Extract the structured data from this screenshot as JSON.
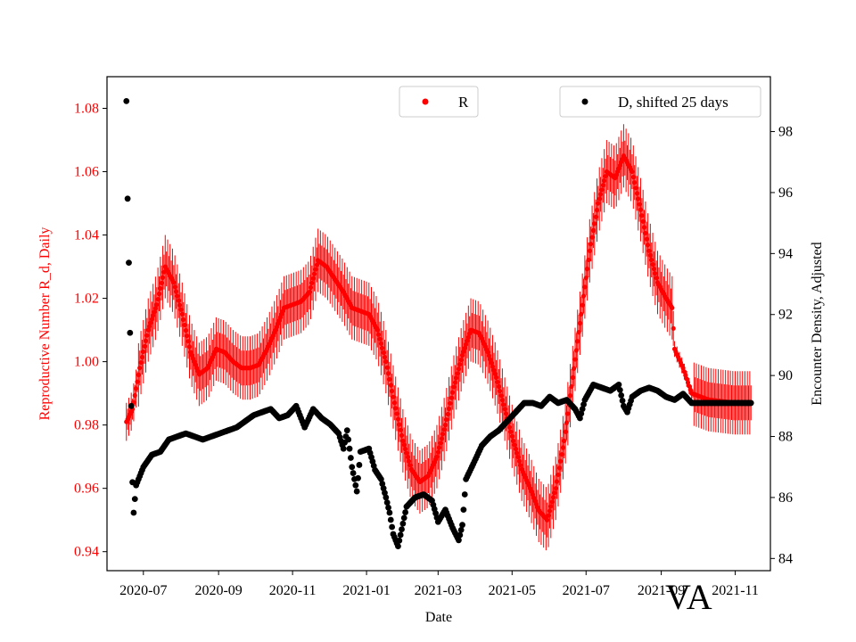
{
  "chart_data": {
    "type": "scatter",
    "title": "",
    "corner_label": "VA",
    "xlabel": "Date",
    "ylabel_left": "Reproductive Number R_d, Daily",
    "ylabel_right": "Encounter Density, Adjusted",
    "left_color": "#ff0000",
    "right_color": "#000000",
    "x_range": [
      "2020-06-01",
      "2021-11-30"
    ],
    "x_ticks": [
      "2020-07",
      "2020-09",
      "2020-11",
      "2021-01",
      "2021-03",
      "2021-05",
      "2021-07",
      "2021-09",
      "2021-11"
    ],
    "ylim_left": [
      0.934,
      1.09
    ],
    "y_ticks_left": [
      "0.94",
      "0.96",
      "0.98",
      "1.00",
      "1.02",
      "1.04",
      "1.06",
      "1.08"
    ],
    "ylim_right": [
      83.6,
      99.8
    ],
    "y_ticks_right": [
      "84",
      "86",
      "88",
      "90",
      "92",
      "94",
      "96",
      "98"
    ],
    "legend": {
      "left": {
        "label": "R",
        "placement": "top-center"
      },
      "right": {
        "label": "D, shifted 25 days",
        "placement": "top-right"
      }
    },
    "series": [
      {
        "name": "R",
        "axis": "left",
        "keypoints": [
          [
            "2020-06-17",
            0.981
          ],
          [
            "2020-06-22",
            0.985
          ],
          [
            "2020-06-28",
            0.998
          ],
          [
            "2020-07-05",
            1.01
          ],
          [
            "2020-07-12",
            1.018
          ],
          [
            "2020-07-19",
            1.03
          ],
          [
            "2020-07-26",
            1.025
          ],
          [
            "2020-08-02",
            1.015
          ],
          [
            "2020-08-09",
            1.003
          ],
          [
            "2020-08-16",
            0.996
          ],
          [
            "2020-08-23",
            0.998
          ],
          [
            "2020-08-30",
            1.004
          ],
          [
            "2020-09-06",
            1.003
          ],
          [
            "2020-09-13",
            1.0
          ],
          [
            "2020-09-20",
            0.998
          ],
          [
            "2020-09-27",
            0.998
          ],
          [
            "2020-10-04",
            0.999
          ],
          [
            "2020-10-11",
            1.004
          ],
          [
            "2020-10-18",
            1.01
          ],
          [
            "2020-10-25",
            1.017
          ],
          [
            "2020-11-01",
            1.018
          ],
          [
            "2020-11-08",
            1.019
          ],
          [
            "2020-11-15",
            1.022
          ],
          [
            "2020-11-22",
            1.032
          ],
          [
            "2020-11-29",
            1.03
          ],
          [
            "2020-12-06",
            1.026
          ],
          [
            "2020-12-13",
            1.022
          ],
          [
            "2020-12-20",
            1.017
          ],
          [
            "2020-12-27",
            1.016
          ],
          [
            "2021-01-03",
            1.015
          ],
          [
            "2021-01-10",
            1.01
          ],
          [
            "2021-01-17",
            1.0
          ],
          [
            "2021-01-24",
            0.987
          ],
          [
            "2021-01-31",
            0.975
          ],
          [
            "2021-02-07",
            0.966
          ],
          [
            "2021-02-14",
            0.962
          ],
          [
            "2021-02-21",
            0.964
          ],
          [
            "2021-02-28",
            0.97
          ],
          [
            "2021-03-07",
            0.98
          ],
          [
            "2021-03-14",
            0.992
          ],
          [
            "2021-03-21",
            1.002
          ],
          [
            "2021-03-28",
            1.01
          ],
          [
            "2021-04-04",
            1.009
          ],
          [
            "2021-04-11",
            1.003
          ],
          [
            "2021-04-18",
            0.995
          ],
          [
            "2021-04-25",
            0.985
          ],
          [
            "2021-05-02",
            0.975
          ],
          [
            "2021-05-09",
            0.966
          ],
          [
            "2021-05-16",
            0.96
          ],
          [
            "2021-05-23",
            0.953
          ],
          [
            "2021-05-30",
            0.95
          ],
          [
            "2021-06-06",
            0.96
          ],
          [
            "2021-06-13",
            0.975
          ],
          [
            "2021-06-20",
            0.995
          ],
          [
            "2021-06-27",
            1.015
          ],
          [
            "2021-07-04",
            1.035
          ],
          [
            "2021-07-11",
            1.05
          ],
          [
            "2021-07-18",
            1.06
          ],
          [
            "2021-07-25",
            1.058
          ],
          [
            "2021-08-01",
            1.065
          ],
          [
            "2021-08-08",
            1.06
          ],
          [
            "2021-08-15",
            1.048
          ],
          [
            "2021-08-22",
            1.035
          ],
          [
            "2021-08-29",
            1.025
          ],
          [
            "2021-09-05",
            1.02
          ],
          [
            "2021-09-10",
            1.017
          ],
          [
            "2021-09-12",
            1.004
          ],
          [
            "2021-09-19",
            0.998
          ],
          [
            "2021-09-26",
            0.99
          ],
          [
            "2021-10-10",
            0.988
          ],
          [
            "2021-10-31",
            0.987
          ],
          [
            "2021-11-14",
            0.987
          ]
        ],
        "error_bar_halfwidth": 0.01
      },
      {
        "name": "D, shifted 25 days",
        "axis": "right",
        "keypoints": [
          [
            "2020-06-17",
            99.0
          ],
          [
            "2020-06-18",
            95.8
          ],
          [
            "2020-06-19",
            93.7
          ],
          [
            "2020-06-20",
            91.4
          ],
          [
            "2020-06-21",
            89.0
          ],
          [
            "2020-06-22",
            86.5
          ],
          [
            "2020-06-23",
            85.5
          ],
          [
            "2020-06-25",
            86.4
          ],
          [
            "2020-07-01",
            87.0
          ],
          [
            "2020-07-08",
            87.4
          ],
          [
            "2020-07-15",
            87.5
          ],
          [
            "2020-07-22",
            87.9
          ],
          [
            "2020-07-29",
            88.0
          ],
          [
            "2020-08-05",
            88.1
          ],
          [
            "2020-08-12",
            88.0
          ],
          [
            "2020-08-19",
            87.9
          ],
          [
            "2020-08-26",
            88.0
          ],
          [
            "2020-09-02",
            88.1
          ],
          [
            "2020-09-09",
            88.2
          ],
          [
            "2020-09-16",
            88.3
          ],
          [
            "2020-09-23",
            88.5
          ],
          [
            "2020-09-30",
            88.7
          ],
          [
            "2020-10-07",
            88.8
          ],
          [
            "2020-10-14",
            88.9
          ],
          [
            "2020-10-21",
            88.6
          ],
          [
            "2020-10-28",
            88.7
          ],
          [
            "2020-11-04",
            89.0
          ],
          [
            "2020-11-11",
            88.3
          ],
          [
            "2020-11-18",
            88.9
          ],
          [
            "2020-11-25",
            88.6
          ],
          [
            "2020-12-02",
            88.4
          ],
          [
            "2020-12-09",
            88.1
          ],
          [
            "2020-12-13",
            87.6
          ],
          [
            "2020-12-16",
            88.2
          ],
          [
            "2020-12-20",
            87.0
          ],
          [
            "2020-12-24",
            86.2
          ],
          [
            "2020-12-27",
            87.5
          ],
          [
            "2021-01-03",
            87.6
          ],
          [
            "2021-01-08",
            86.9
          ],
          [
            "2021-01-13",
            86.6
          ],
          [
            "2021-01-17",
            86.0
          ],
          [
            "2021-01-20",
            85.5
          ],
          [
            "2021-01-23",
            84.8
          ],
          [
            "2021-01-27",
            84.4
          ],
          [
            "2021-02-03",
            85.7
          ],
          [
            "2021-02-10",
            86.0
          ],
          [
            "2021-02-17",
            86.1
          ],
          [
            "2021-02-24",
            85.9
          ],
          [
            "2021-03-01",
            85.2
          ],
          [
            "2021-03-07",
            85.6
          ],
          [
            "2021-03-13",
            85.0
          ],
          [
            "2021-03-18",
            84.6
          ],
          [
            "2021-03-21",
            85.1
          ],
          [
            "2021-03-24",
            86.6
          ],
          [
            "2021-03-30",
            87.1
          ],
          [
            "2021-04-06",
            87.7
          ],
          [
            "2021-04-13",
            88.0
          ],
          [
            "2021-04-20",
            88.2
          ],
          [
            "2021-04-27",
            88.5
          ],
          [
            "2021-05-04",
            88.8
          ],
          [
            "2021-05-11",
            89.1
          ],
          [
            "2021-05-18",
            89.1
          ],
          [
            "2021-05-25",
            89.0
          ],
          [
            "2021-06-01",
            89.3
          ],
          [
            "2021-06-08",
            89.1
          ],
          [
            "2021-06-15",
            89.2
          ],
          [
            "2021-06-22",
            88.9
          ],
          [
            "2021-06-26",
            88.6
          ],
          [
            "2021-06-30",
            89.2
          ],
          [
            "2021-07-07",
            89.7
          ],
          [
            "2021-07-14",
            89.6
          ],
          [
            "2021-07-21",
            89.5
          ],
          [
            "2021-07-28",
            89.7
          ],
          [
            "2021-08-01",
            89.0
          ],
          [
            "2021-08-04",
            88.8
          ],
          [
            "2021-08-08",
            89.3
          ],
          [
            "2021-08-15",
            89.5
          ],
          [
            "2021-08-22",
            89.6
          ],
          [
            "2021-08-29",
            89.5
          ],
          [
            "2021-09-05",
            89.3
          ],
          [
            "2021-09-12",
            89.2
          ],
          [
            "2021-09-19",
            89.4
          ],
          [
            "2021-09-26",
            89.1
          ],
          [
            "2021-10-03",
            89.1
          ],
          [
            "2021-11-14",
            89.1
          ]
        ]
      }
    ]
  }
}
